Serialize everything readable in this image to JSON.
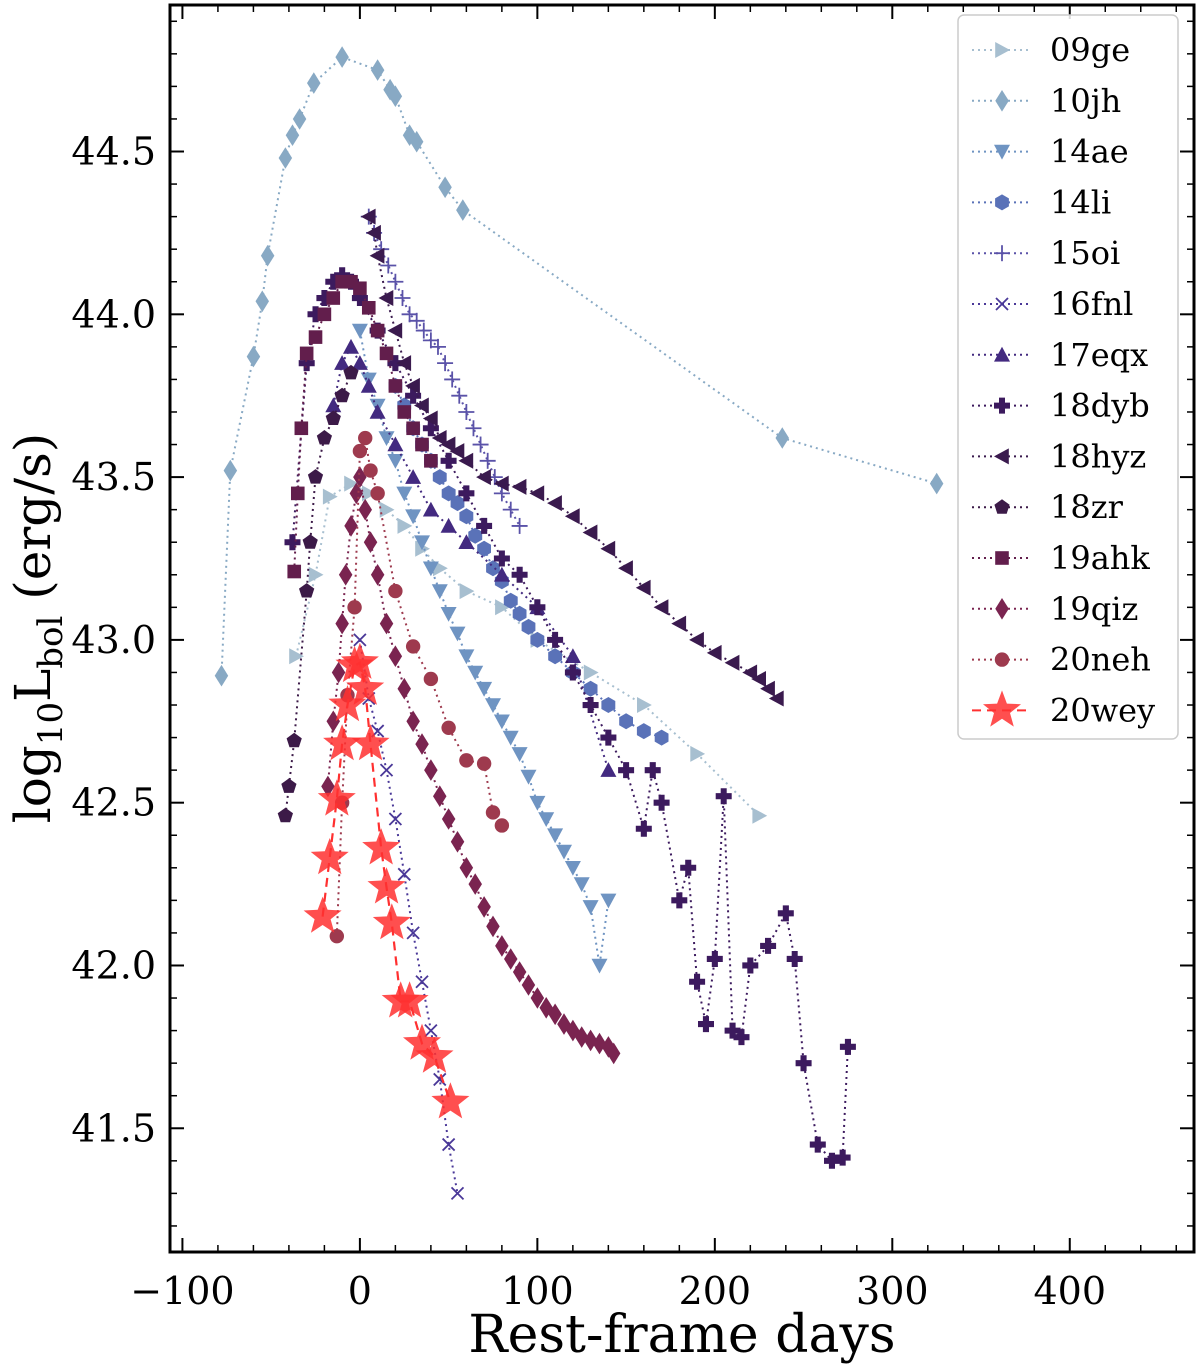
{
  "chart_data": {
    "type": "line",
    "title": "",
    "xlabel": "Rest-frame days",
    "ylabel_main": "log",
    "ylabel_sub": "10",
    "ylabel_l": "L",
    "ylabel_bol": "bol",
    "ylabel_unit": " (erg/s)",
    "xlim": [
      -107,
      470
    ],
    "ylim": [
      41.12,
      44.95
    ],
    "xticks": [
      -100,
      0,
      100,
      200,
      300,
      400
    ],
    "xtick_labels": [
      "−100",
      "0",
      "100",
      "200",
      "300",
      "400"
    ],
    "yticks": [
      41.5,
      42.0,
      42.5,
      43.0,
      43.5,
      44.0,
      44.5
    ],
    "ytick_labels": [
      "41.5",
      "42.0",
      "42.5",
      "43.0",
      "43.5",
      "44.0",
      "44.5"
    ],
    "grid": false,
    "legend_position": "top-right",
    "series": [
      {
        "name": "09ge",
        "color": "#a7bfd0",
        "marker": "tri-right",
        "dash": "dot",
        "x": [
          -36,
          -25,
          -17,
          -5,
          5,
          15,
          25,
          35,
          45,
          60,
          80,
          100,
          130,
          160,
          190,
          225
        ],
        "y": [
          42.95,
          43.2,
          43.44,
          43.48,
          43.45,
          43.4,
          43.35,
          43.28,
          43.22,
          43.15,
          43.1,
          43.0,
          42.9,
          42.8,
          42.65,
          42.46
        ]
      },
      {
        "name": "10jh",
        "color": "#88a9c4",
        "marker": "diamond",
        "dash": "dot",
        "x": [
          -78,
          -73,
          -60,
          -55,
          -52,
          -42,
          -38,
          -34,
          -26,
          -10,
          10,
          17,
          20,
          28,
          32,
          48,
          58,
          238,
          325
        ],
        "y": [
          42.89,
          43.52,
          43.87,
          44.04,
          44.18,
          44.48,
          44.55,
          44.6,
          44.71,
          44.79,
          44.75,
          44.69,
          44.67,
          44.55,
          44.53,
          44.39,
          44.32,
          43.62,
          43.48
        ]
      },
      {
        "name": "14ae",
        "color": "#6f94c2",
        "marker": "tri-down",
        "dash": "dot",
        "x": [
          0,
          5,
          10,
          15,
          20,
          25,
          30,
          35,
          40,
          45,
          50,
          55,
          60,
          65,
          70,
          75,
          80,
          85,
          90,
          95,
          100,
          105,
          110,
          115,
          120,
          125,
          130,
          135,
          140
        ],
        "y": [
          43.95,
          43.8,
          43.72,
          43.62,
          43.55,
          43.45,
          43.38,
          43.3,
          43.22,
          43.15,
          43.08,
          43.02,
          42.95,
          42.9,
          42.85,
          42.8,
          42.75,
          42.7,
          42.65,
          42.58,
          42.5,
          42.45,
          42.4,
          42.35,
          42.3,
          42.25,
          42.18,
          42.0,
          42.2
        ]
      },
      {
        "name": "14li",
        "color": "#5a72b8",
        "marker": "hexagon",
        "dash": "dot",
        "x": [
          20,
          25,
          30,
          35,
          40,
          45,
          50,
          55,
          60,
          65,
          70,
          75,
          80,
          85,
          90,
          95,
          100,
          110,
          120,
          130,
          140,
          150,
          160,
          170
        ],
        "y": [
          43.78,
          43.72,
          43.65,
          43.6,
          43.55,
          43.5,
          43.45,
          43.42,
          43.38,
          43.32,
          43.28,
          43.22,
          43.18,
          43.12,
          43.08,
          43.04,
          43.0,
          42.95,
          42.9,
          42.85,
          42.8,
          42.75,
          42.72,
          42.7
        ]
      },
      {
        "name": "15oi",
        "color": "#5a52a8",
        "marker": "plus",
        "dash": "dot",
        "x": [
          5,
          8,
          12,
          16,
          20,
          24,
          28,
          32,
          36,
          40,
          44,
          48,
          52,
          56,
          60,
          64,
          68,
          72,
          76,
          80,
          85,
          90
        ],
        "y": [
          44.3,
          44.25,
          44.2,
          44.15,
          44.1,
          44.05,
          44.0,
          43.98,
          43.95,
          43.92,
          43.9,
          43.85,
          43.8,
          43.75,
          43.7,
          43.65,
          43.6,
          43.55,
          43.5,
          43.45,
          43.4,
          43.35
        ]
      },
      {
        "name": "16fnl",
        "color": "#4a3898",
        "marker": "x",
        "dash": "dot",
        "x": [
          0,
          5,
          10,
          15,
          20,
          25,
          30,
          35,
          40,
          45,
          50,
          55
        ],
        "y": [
          43.0,
          42.82,
          42.72,
          42.6,
          42.45,
          42.28,
          42.1,
          41.95,
          41.8,
          41.65,
          41.45,
          41.3
        ]
      },
      {
        "name": "17eqx",
        "color": "#432a80",
        "marker": "tri-up",
        "dash": "dot",
        "x": [
          -15,
          -10,
          -5,
          0,
          5,
          10,
          20,
          30,
          40,
          50,
          60,
          80,
          100,
          120,
          140
        ],
        "y": [
          43.72,
          43.85,
          43.9,
          43.85,
          43.78,
          43.7,
          43.6,
          43.5,
          43.4,
          43.35,
          43.3,
          43.2,
          43.1,
          42.95,
          42.6
        ]
      },
      {
        "name": "18dyb",
        "color": "#3c1a5e",
        "marker": "plus-filled",
        "dash": "dot",
        "x": [
          -38,
          -30,
          -25,
          -20,
          -15,
          -10,
          -5,
          0,
          10,
          20,
          30,
          40,
          50,
          60,
          70,
          80,
          90,
          100,
          110,
          120,
          130,
          140,
          150,
          160,
          165,
          170,
          180,
          185,
          190,
          195,
          200,
          205,
          210,
          215,
          220,
          230,
          240,
          245,
          250,
          258,
          266,
          272,
          275
        ],
        "y": [
          43.3,
          43.85,
          44.0,
          44.05,
          44.1,
          44.12,
          44.1,
          44.05,
          43.95,
          43.85,
          43.75,
          43.65,
          43.55,
          43.45,
          43.35,
          43.25,
          43.2,
          43.1,
          43.0,
          42.9,
          42.8,
          42.7,
          42.6,
          42.42,
          42.6,
          42.5,
          42.2,
          42.3,
          41.95,
          41.82,
          42.02,
          42.52,
          41.8,
          41.78,
          42.0,
          42.06,
          42.16,
          42.02,
          41.7,
          41.45,
          41.4,
          41.41,
          41.75
        ]
      },
      {
        "name": "18hyz",
        "color": "#3a1a4e",
        "marker": "tri-left",
        "dash": "dot",
        "x": [
          5,
          8,
          10,
          15,
          20,
          25,
          30,
          35,
          40,
          45,
          50,
          55,
          60,
          70,
          80,
          90,
          100,
          110,
          120,
          130,
          140,
          150,
          160,
          170,
          180,
          190,
          200,
          210,
          220,
          225,
          230,
          235
        ],
        "y": [
          44.3,
          44.25,
          44.18,
          44.05,
          43.95,
          43.85,
          43.78,
          43.72,
          43.68,
          43.62,
          43.6,
          43.58,
          43.55,
          43.5,
          43.48,
          43.47,
          43.45,
          43.42,
          43.38,
          43.33,
          43.28,
          43.22,
          43.16,
          43.1,
          43.05,
          43.0,
          42.96,
          42.93,
          42.9,
          42.88,
          42.85,
          42.82
        ]
      },
      {
        "name": "18zr",
        "color": "#3c1a48",
        "marker": "pentagon",
        "dash": "dot",
        "x": [
          -42,
          -40,
          -37,
          -30,
          -28,
          -25,
          -20,
          -15,
          -10,
          -5
        ],
        "y": [
          42.46,
          42.55,
          42.69,
          43.15,
          43.3,
          43.5,
          43.62,
          43.68,
          43.75,
          43.82
        ]
      },
      {
        "name": "19ahk",
        "color": "#621e4c",
        "marker": "square",
        "dash": "dot",
        "x": [
          -37,
          -35,
          -33,
          -30,
          -25,
          -20,
          -15,
          -10,
          -5,
          0,
          5,
          10,
          15,
          20,
          25,
          30,
          35,
          40
        ],
        "y": [
          43.21,
          43.45,
          43.65,
          43.88,
          43.93,
          44.0,
          44.05,
          44.1,
          44.1,
          44.08,
          44.02,
          43.95,
          43.88,
          43.78,
          43.7,
          43.65,
          43.6,
          43.55
        ]
      },
      {
        "name": "19qiz",
        "color": "#7a2450",
        "marker": "diamond",
        "dash": "dot",
        "x": [
          -18,
          -15,
          -12,
          -10,
          -8,
          -5,
          -2,
          0,
          3,
          6,
          10,
          15,
          20,
          25,
          30,
          35,
          40,
          45,
          50,
          55,
          60,
          65,
          70,
          75,
          80,
          85,
          90,
          95,
          100,
          105,
          110,
          115,
          120,
          125,
          130,
          135,
          140,
          143
        ],
        "y": [
          42.55,
          42.75,
          42.9,
          43.05,
          43.2,
          43.35,
          43.45,
          43.5,
          43.4,
          43.3,
          43.2,
          43.05,
          42.95,
          42.85,
          42.75,
          42.68,
          42.6,
          42.52,
          42.45,
          42.38,
          42.3,
          42.25,
          42.18,
          42.12,
          42.06,
          42.02,
          41.98,
          41.94,
          41.9,
          41.87,
          41.85,
          41.82,
          41.8,
          41.78,
          41.77,
          41.76,
          41.75,
          41.73
        ]
      },
      {
        "name": "20neh",
        "color": "#9e3a4e",
        "marker": "circle",
        "dash": "dot",
        "x": [
          -13,
          -10,
          -7,
          -3,
          0,
          3,
          6,
          10,
          20,
          30,
          40,
          50,
          60,
          70,
          75,
          80
        ],
        "y": [
          42.09,
          42.5,
          42.83,
          43.1,
          43.58,
          43.62,
          43.52,
          43.45,
          43.15,
          42.98,
          42.88,
          42.73,
          42.63,
          42.62,
          42.47,
          42.43
        ]
      },
      {
        "name": "20wey",
        "color": "#ff3030",
        "marker": "star",
        "dash": "dash",
        "x": [
          -21,
          -17,
          -13,
          -10,
          -7,
          -3,
          0,
          3,
          6,
          12,
          15,
          18,
          23,
          28,
          35,
          42,
          51
        ],
        "y": [
          42.15,
          42.33,
          42.51,
          42.68,
          42.8,
          42.92,
          42.93,
          42.85,
          42.68,
          42.36,
          42.24,
          42.13,
          41.89,
          41.89,
          41.76,
          41.72,
          41.58
        ]
      }
    ]
  }
}
